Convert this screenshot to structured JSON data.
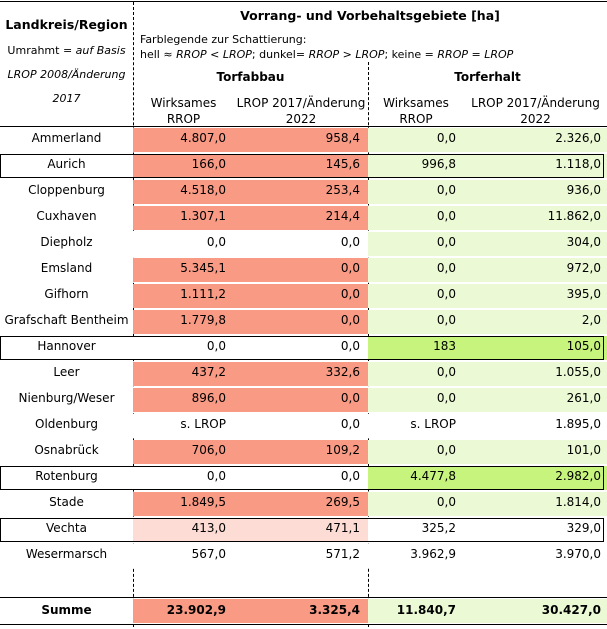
{
  "header": {
    "region_label": "Landkreis/Region",
    "frame_line1_prefix": "Umrahmt = ",
    "frame_line1_italic": "auf Basis",
    "frame_line2": "LROP 2008/Änderung",
    "frame_line3": "2017",
    "main_title": "Vorrang- und Vorbehaltsgebiete [ha]",
    "legend_line1": "Farblegende zur Schattierung:",
    "legend_line2_a": "hell ≈ ",
    "legend_line2_b": "RROP < LROP",
    "legend_line2_c": "; dunkel= ",
    "legend_line2_d": "RROP > LROP",
    "legend_line2_e": "; keine = ",
    "legend_line2_f": "RROP = LROP",
    "group_torfabbau": "Torfabbau",
    "group_torferhalt": "Torferhalt",
    "col1_line1": "Wirksames",
    "col1_line2": "RROP",
    "col2_line1": "LROP 2017/Änderung",
    "col2_line2": "2022",
    "col3_line1": "Wirksames",
    "col3_line2": "RROP",
    "col4_line1": "LROP 2017/Änderung",
    "col4_line2": "2022"
  },
  "rows": [
    {
      "name": "Ammerland",
      "v1": "4.807,0",
      "v2": "958,4",
      "v3": "0,0",
      "v4": "2.326,0"
    },
    {
      "name": "Aurich",
      "v1": "166,0",
      "v2": "145,6",
      "v3": "996,8",
      "v4": "1.118,0"
    },
    {
      "name": "Cloppenburg",
      "v1": "4.518,0",
      "v2": "253,4",
      "v3": "0,0",
      "v4": "936,0"
    },
    {
      "name": "Cuxhaven",
      "v1": "1.307,1",
      "v2": "214,4",
      "v3": "0,0",
      "v4": "11.862,0"
    },
    {
      "name": "Diepholz",
      "v1": "0,0",
      "v2": "0,0",
      "v3": "0,0",
      "v4": "304,0"
    },
    {
      "name": "Emsland",
      "v1": "5.345,1",
      "v2": "0,0",
      "v3": "0,0",
      "v4": "972,0"
    },
    {
      "name": "Gifhorn",
      "v1": "1.111,2",
      "v2": "0,0",
      "v3": "0,0",
      "v4": "395,0"
    },
    {
      "name": "Grafschaft Bentheim",
      "v1": "1.779,8",
      "v2": "0,0",
      "v3": "0,0",
      "v4": "2,0"
    },
    {
      "name": "Hannover",
      "v1": "0,0",
      "v2": "0,0",
      "v3": "183",
      "v4": "105,0"
    },
    {
      "name": "Leer",
      "v1": "437,2",
      "v2": "332,6",
      "v3": "0,0",
      "v4": "1.055,0"
    },
    {
      "name": "Nienburg/Weser",
      "v1": "896,0",
      "v2": "0,0",
      "v3": "0,0",
      "v4": "261,0"
    },
    {
      "name": "Oldenburg",
      "v1": "s. LROP",
      "v2": "0,0",
      "v3": "s. LROP",
      "v4": "1.895,0"
    },
    {
      "name": "Osnabrück",
      "v1": "706,0",
      "v2": "109,2",
      "v3": "0,0",
      "v4": "101,0"
    },
    {
      "name": "Rotenburg",
      "v1": "0,0",
      "v2": "0,0",
      "v3": "4.477,8",
      "v4": "2.982,0"
    },
    {
      "name": "Stade",
      "v1": "1.849,5",
      "v2": "269,5",
      "v3": "0,0",
      "v4": "1.814,0"
    },
    {
      "name": "Vechta",
      "v1": "413,0",
      "v2": "471,1",
      "v3": "325,2",
      "v4": "329,0"
    },
    {
      "name": "Wesermarsch",
      "v1": "567,0",
      "v2": "571,2",
      "v3": "3.962,9",
      "v4": "3.970,0"
    }
  ],
  "total": {
    "name": "Summe",
    "v1": "23.902,9",
    "v2": "3.325,4",
    "v3": "11.840,7",
    "v4": "30.427,0"
  },
  "colors": {
    "red": "#f99a85",
    "pink": "#fcdcd5",
    "green_light": "#ebfad4",
    "green_dark": "#c6f47c",
    "white": "#ffffff"
  }
}
